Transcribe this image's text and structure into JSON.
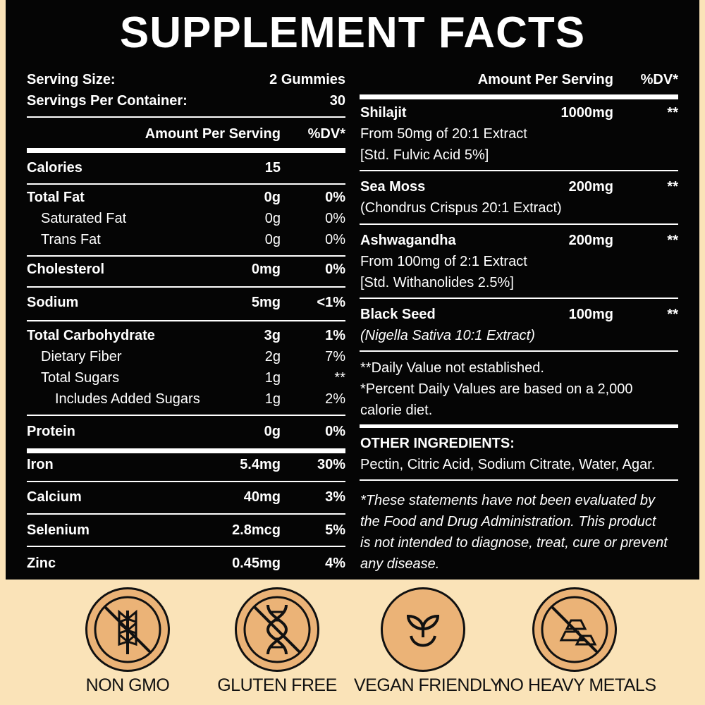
{
  "title": "SUPPLEMENT FACTS",
  "left": {
    "serving_size_label": "Serving Size:",
    "serving_size_value": "2 Gummies",
    "servings_label": "Servings Per Container:",
    "servings_value": "30",
    "header_amount": "Amount Per Serving",
    "header_dv": "%DV*",
    "rows": [
      {
        "name": "Calories",
        "amount": "15",
        "dv": ""
      },
      {
        "name": "Total Fat",
        "amount": "0g",
        "dv": "0%"
      },
      {
        "name": "Saturated Fat",
        "amount": "0g",
        "dv": "0%"
      },
      {
        "name": "Trans Fat",
        "amount": "0g",
        "dv": "0%"
      },
      {
        "name": "Cholesterol",
        "amount": "0mg",
        "dv": "0%"
      },
      {
        "name": "Sodium",
        "amount": "5mg",
        "dv": "<1%"
      },
      {
        "name": "Total Carbohydrate",
        "amount": "3g",
        "dv": "1%"
      },
      {
        "name": "Dietary Fiber",
        "amount": "2g",
        "dv": "7%"
      },
      {
        "name": "Total Sugars",
        "amount": "1g",
        "dv": "**"
      },
      {
        "name": "Includes Added Sugars",
        "amount": "1g",
        "dv": "2%"
      },
      {
        "name": "Protein",
        "amount": "0g",
        "dv": "0%"
      },
      {
        "name": "Iron",
        "amount": "5.4mg",
        "dv": "30%"
      },
      {
        "name": "Calcium",
        "amount": "40mg",
        "dv": "3%"
      },
      {
        "name": "Selenium",
        "amount": "2.8mcg",
        "dv": "5%"
      },
      {
        "name": "Zinc",
        "amount": "0.45mg",
        "dv": "4%"
      }
    ]
  },
  "right": {
    "header_amount": "Amount Per Serving",
    "header_dv": "%DV*",
    "ingredients": [
      {
        "name": "Shilajit",
        "amount": "1000mg",
        "dv": "**",
        "line1": "From 50mg of 20:1 Extract",
        "line2": "[Std. Fulvic Acid 5%]"
      },
      {
        "name": "Sea Moss",
        "amount": "200mg",
        "dv": "**",
        "line1": "(Chondrus Crispus 20:1 Extract)",
        "line2": ""
      },
      {
        "name": "Ashwagandha",
        "amount": "200mg",
        "dv": "**",
        "line1": "From 100mg of 2:1 Extract",
        "line2": "[Std. Withanolides 2.5%]"
      },
      {
        "name": "Black Seed",
        "amount": "100mg",
        "dv": "**",
        "line1": "(Nigella Sativa 10:1 Extract)",
        "line2": ""
      }
    ],
    "footnote1": "**Daily Value not established.",
    "footnote2": "*Percent Daily Values are based on a 2,000",
    "footnote3": "calorie diet.",
    "other_title": "OTHER INGREDIENTS:",
    "other_text": "Pectin, Citric Acid, Sodium Citrate, Water, Agar.",
    "disclaimer": [
      "*These statements have not been evaluated by",
      "the Food and Drug Administration. This product",
      "is not intended to diagnose, treat, cure or prevent",
      "any disease."
    ]
  },
  "badges": [
    {
      "label": "NON GMO",
      "icon": "wheat-crossed-icon"
    },
    {
      "label": "GLUTEN FREE",
      "icon": "dna-crossed-icon"
    },
    {
      "label": "VEGAN FRIENDLY",
      "icon": "sprout-icon"
    },
    {
      "label": "NO HEAVY METALS",
      "icon": "metal-bars-crossed-icon"
    }
  ],
  "colors": {
    "panel": "#050505",
    "background": "#fae3b8",
    "badge": "#ebb377",
    "text": "#ffffff"
  }
}
